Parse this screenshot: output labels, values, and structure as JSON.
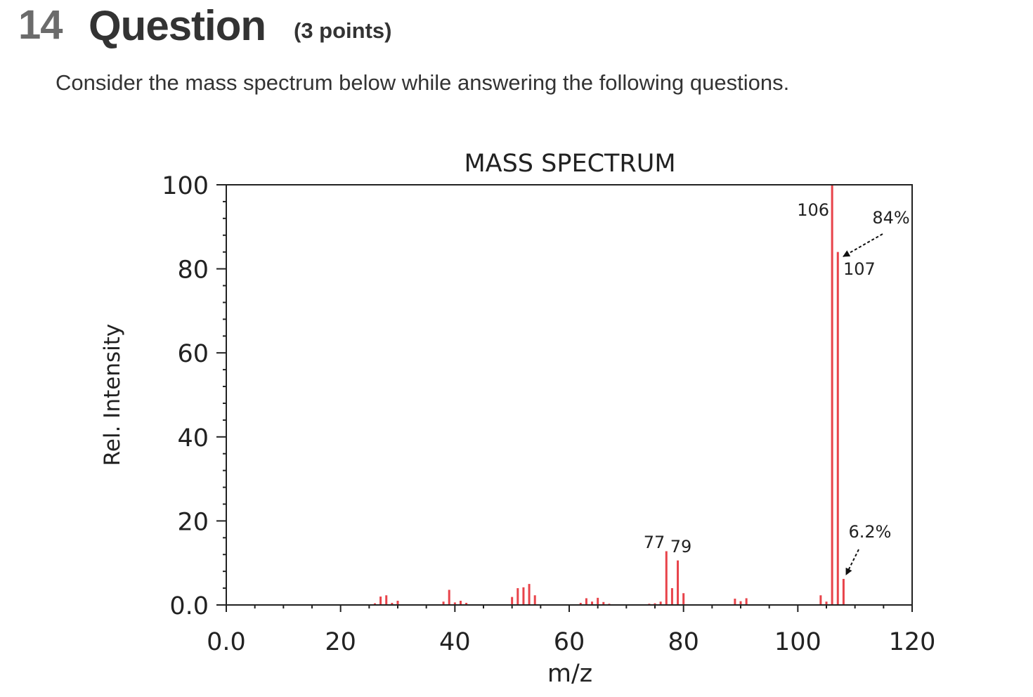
{
  "question": {
    "number": "14",
    "title": "Question",
    "points": "(3 points)",
    "prompt": "Consider the mass spectrum below while answering the following questions."
  },
  "chart_data": {
    "type": "bar",
    "title": "MASS SPECTRUM",
    "xlabel": "m/z",
    "ylabel": "Rel. Intensity",
    "xlim": [
      0,
      120
    ],
    "ylim": [
      0,
      100
    ],
    "xticks": [
      0,
      20,
      40,
      60,
      80,
      100,
      120
    ],
    "xtick_labels": [
      "0.0",
      "20",
      "40",
      "60",
      "80",
      "100",
      "120"
    ],
    "yticks": [
      0,
      20,
      40,
      60,
      80,
      100
    ],
    "ytick_labels": [
      "0.0",
      "20",
      "40",
      "60",
      "80",
      "100"
    ],
    "bar_color": "#e8434a",
    "grid": false,
    "peaks": [
      {
        "mz": 26,
        "intensity": 0.4
      },
      {
        "mz": 27,
        "intensity": 2.0
      },
      {
        "mz": 28,
        "intensity": 2.3
      },
      {
        "mz": 29,
        "intensity": 0.5
      },
      {
        "mz": 30,
        "intensity": 1.0
      },
      {
        "mz": 38,
        "intensity": 0.8
      },
      {
        "mz": 39,
        "intensity": 3.6
      },
      {
        "mz": 40,
        "intensity": 0.6
      },
      {
        "mz": 41,
        "intensity": 1.0
      },
      {
        "mz": 42,
        "intensity": 0.5
      },
      {
        "mz": 50,
        "intensity": 1.9
      },
      {
        "mz": 51,
        "intensity": 4.0
      },
      {
        "mz": 52,
        "intensity": 4.2
      },
      {
        "mz": 53,
        "intensity": 5.0
      },
      {
        "mz": 54,
        "intensity": 2.3
      },
      {
        "mz": 62,
        "intensity": 0.5
      },
      {
        "mz": 63,
        "intensity": 1.6
      },
      {
        "mz": 64,
        "intensity": 0.8
      },
      {
        "mz": 65,
        "intensity": 1.7
      },
      {
        "mz": 66,
        "intensity": 0.7
      },
      {
        "mz": 67,
        "intensity": 0.3
      },
      {
        "mz": 74,
        "intensity": 0.3
      },
      {
        "mz": 75,
        "intensity": 0.4
      },
      {
        "mz": 76,
        "intensity": 0.8
      },
      {
        "mz": 77,
        "intensity": 12.8
      },
      {
        "mz": 78,
        "intensity": 4.0
      },
      {
        "mz": 79,
        "intensity": 10.6
      },
      {
        "mz": 80,
        "intensity": 2.8
      },
      {
        "mz": 89,
        "intensity": 1.5
      },
      {
        "mz": 90,
        "intensity": 0.9
      },
      {
        "mz": 91,
        "intensity": 1.6
      },
      {
        "mz": 104,
        "intensity": 2.3
      },
      {
        "mz": 105,
        "intensity": 0.8
      },
      {
        "mz": 106,
        "intensity": 100
      },
      {
        "mz": 107,
        "intensity": 84
      },
      {
        "mz": 108,
        "intensity": 6.2
      }
    ],
    "peak_labels": [
      {
        "mz": 77,
        "text": "77"
      },
      {
        "mz": 79,
        "text": "79"
      },
      {
        "mz": 106,
        "text": "106"
      },
      {
        "mz": 107,
        "text": "107"
      }
    ],
    "annotations": [
      {
        "text": "84%",
        "points_to_mz": 107,
        "points_to_intensity": 84
      },
      {
        "text": "6.2%",
        "points_to_mz": 108,
        "points_to_intensity": 6.2
      }
    ]
  }
}
